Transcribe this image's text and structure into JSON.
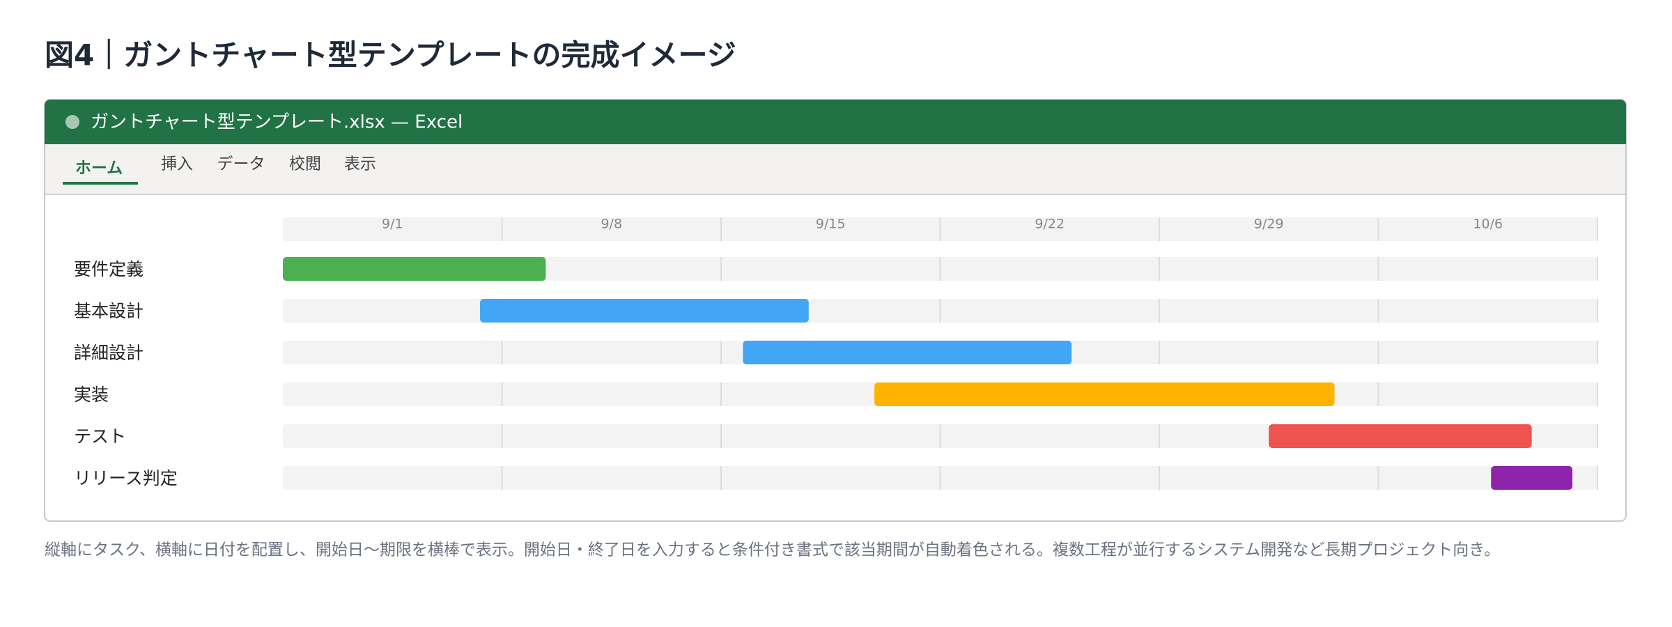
{
  "header": {
    "title": "図4｜ガントチャート型テンプレートの完成イメージ"
  },
  "window": {
    "title": "ガントチャート型テンプレート.xlsx — Excel",
    "tabs": [
      "ホーム",
      "挿入",
      "データ",
      "校閲",
      "表示"
    ]
  },
  "chart_data": {
    "type": "gantt",
    "categories": [
      "要件定義",
      "基本設計",
      "詳細設計",
      "実装",
      "テスト",
      "リリース判定"
    ],
    "series": [
      {
        "name": "start",
        "values": [
          0,
          6.3,
          14.7,
          18.9,
          31.5,
          38.6
        ]
      },
      {
        "name": "end",
        "values": [
          8.4,
          16.8,
          25.2,
          33.6,
          39.9,
          41.2
        ]
      }
    ],
    "colors": [
      "#4caf50",
      "#42a5f5",
      "#42a5f5",
      "#ffb300",
      "#ef5350",
      "#8e24aa"
    ],
    "xlim": [
      0,
      42
    ],
    "xticks": [
      {
        "value": 0,
        "label": "9/1"
      },
      {
        "value": 7,
        "label": "9/8"
      },
      {
        "value": 14,
        "label": "9/15"
      },
      {
        "value": 21,
        "label": "9/22"
      },
      {
        "value": 28,
        "label": "9/29"
      },
      {
        "value": 35,
        "label": "10/6"
      }
    ],
    "grid": true
  },
  "caption": "縦軸にタスク、横軸に日付を配置し、開始日〜期限を横棒で表示。開始日・終了日を入力すると条件付き書式で該当期間が自動着色される。複数工程が並行するシステム開発など長期プロジェクト向き。"
}
